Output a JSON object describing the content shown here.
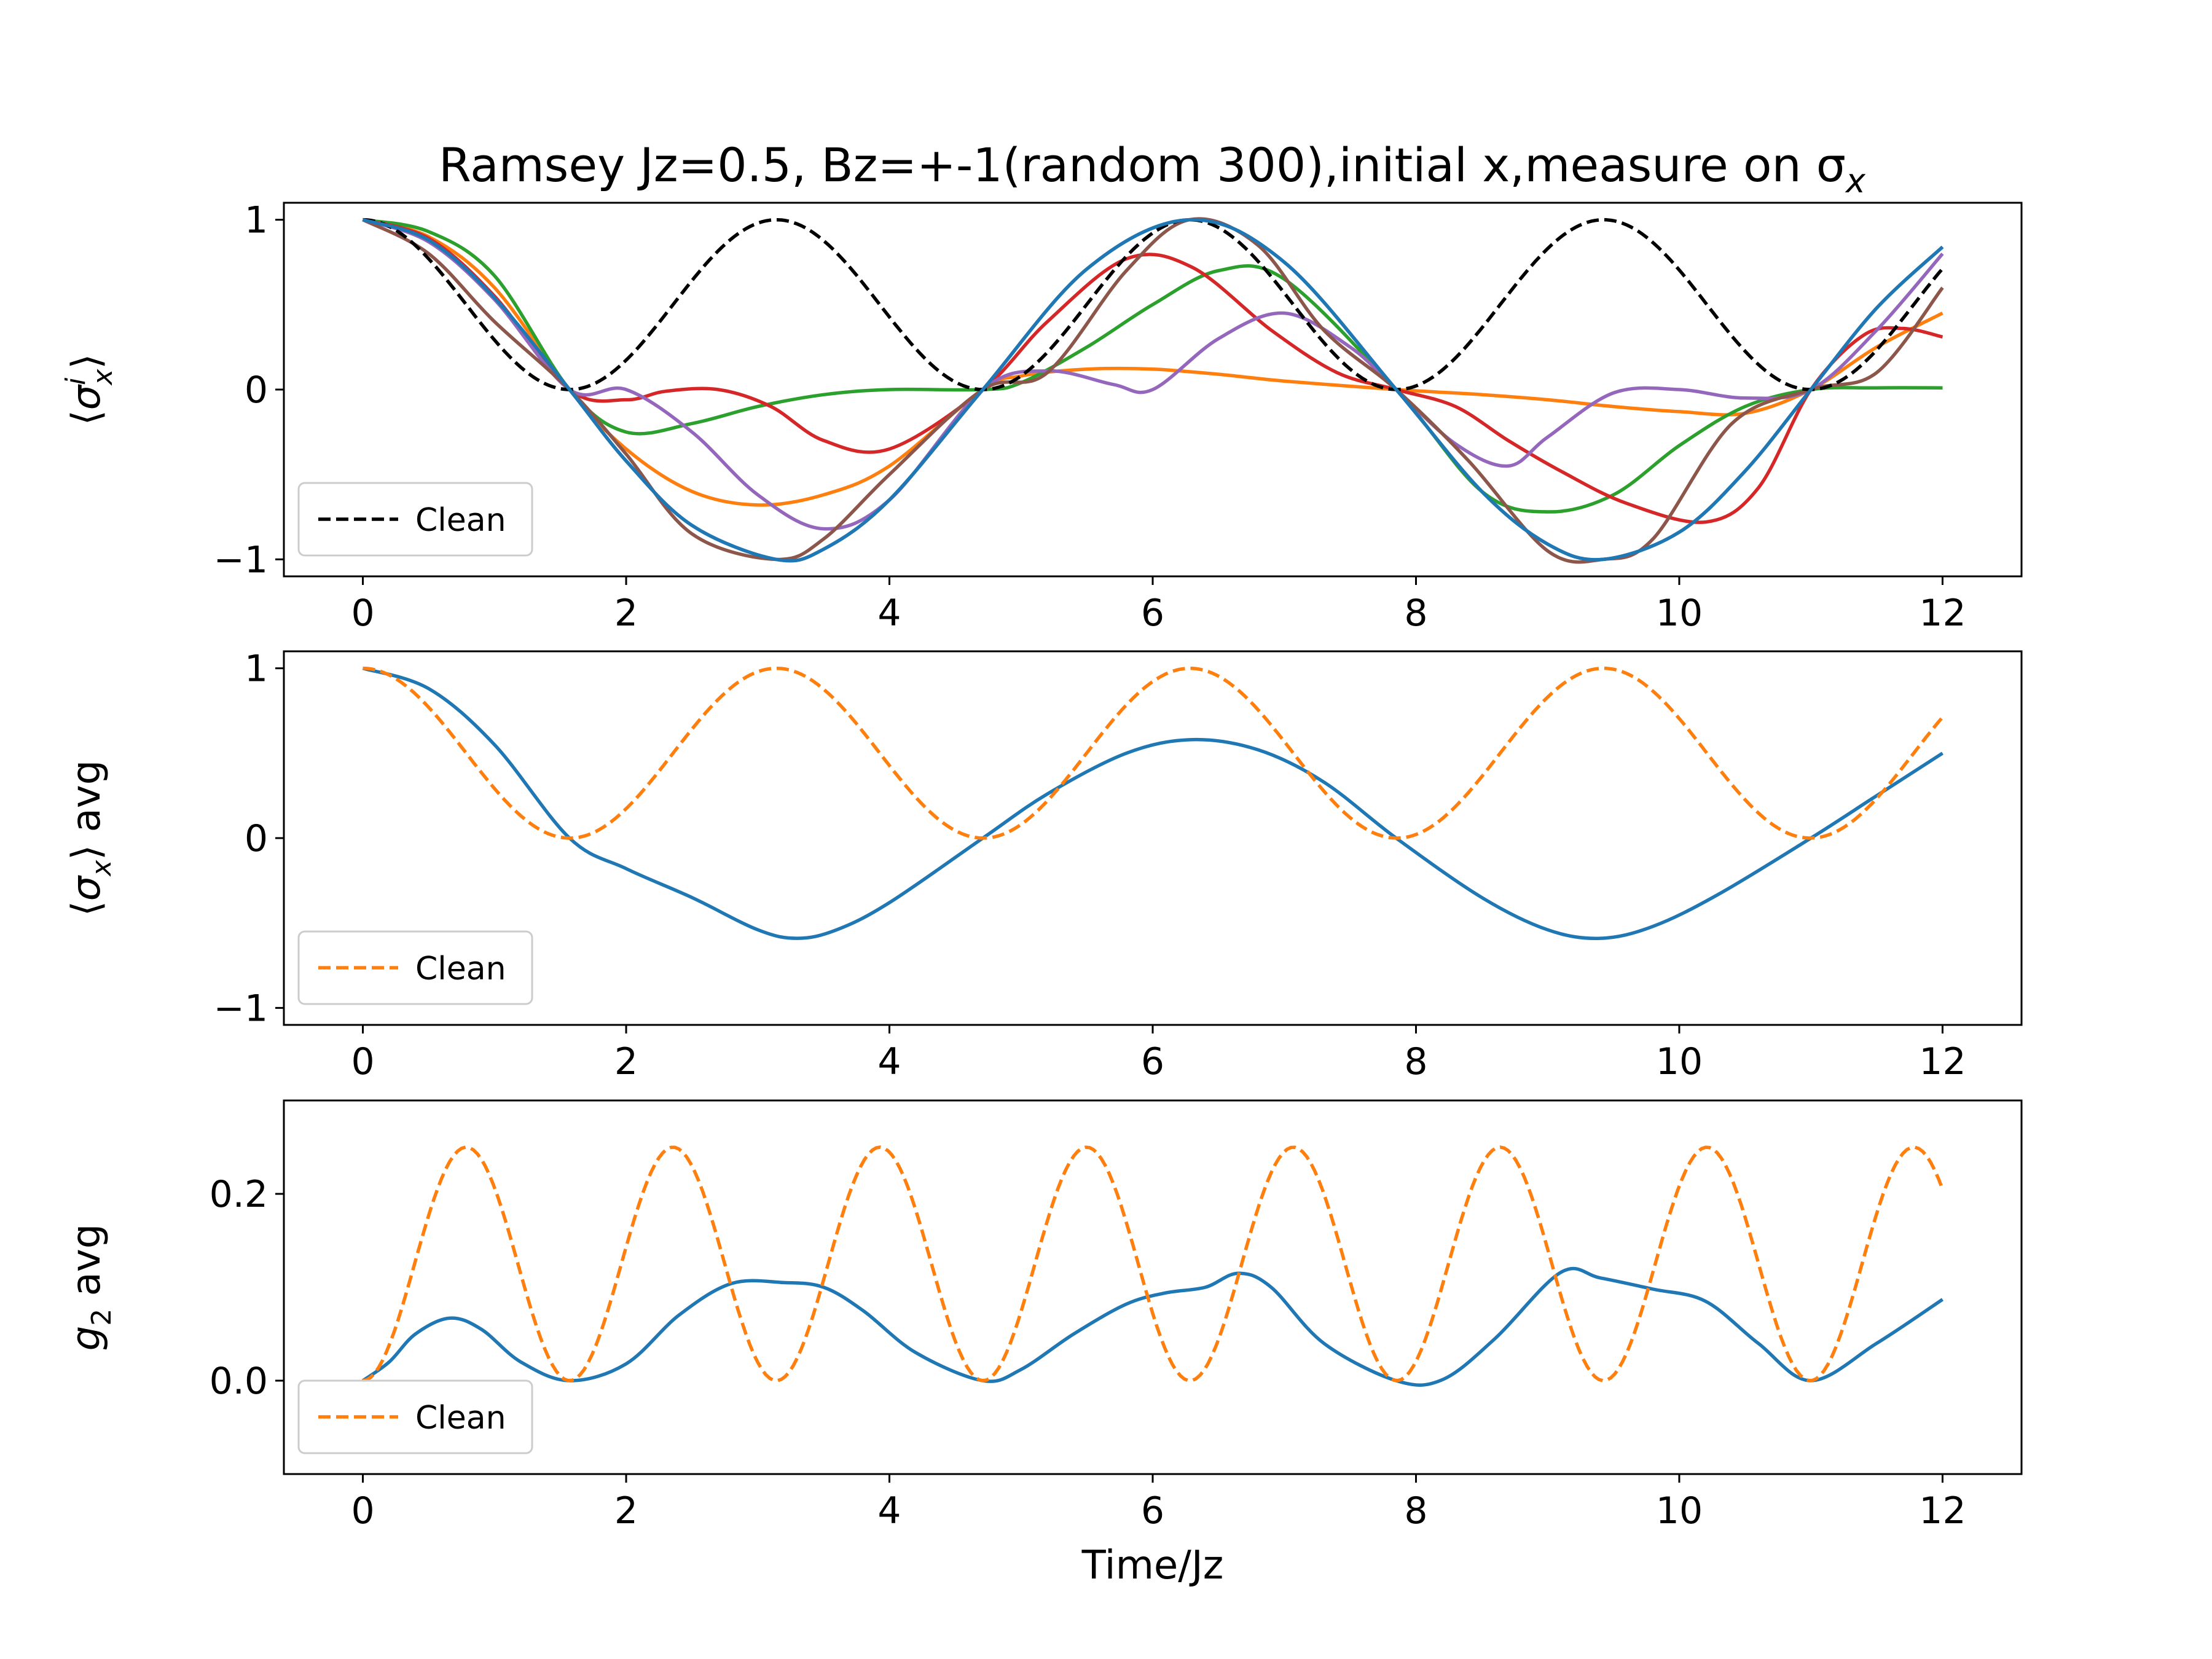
{
  "figure_title": "Ramsey Jz=0.5, Bz=+-1(random 300),initial x,measure on σ",
  "figure_title_subscript": "x",
  "colors": {
    "C0": "#1f77b4",
    "C1": "#ff7f0e",
    "C2": "#2ca02c",
    "C3": "#d62728",
    "C4": "#9467bd",
    "C5": "#8c564b",
    "clean_black": "#000000"
  },
  "chart_data": [
    {
      "type": "line",
      "title": "Ramsey Jz=0.5, Bz=+-1(random 300),initial x,measure on σ_x",
      "xlabel": "",
      "ylabel": "⟨σ_x^i⟩",
      "xlim": [
        -0.6,
        12.6
      ],
      "ylim": [
        -1.1,
        1.1
      ],
      "xticks": [
        "0",
        "2",
        "4",
        "6",
        "8",
        "10",
        "12"
      ],
      "yticks": [
        "−1",
        "0",
        "1"
      ],
      "legend": {
        "position": "lower-left",
        "entries": [
          "Clean"
        ]
      },
      "grid": false,
      "series": [
        {
          "color": "C0",
          "style": "solid",
          "x": [
            0,
            0.5,
            1,
            1.57,
            2,
            2.5,
            3.14,
            3.5,
            4,
            4.71,
            5.5,
            6.28,
            7,
            7.85,
            8.5,
            9,
            9.42,
            10,
            10.5,
            11,
            11.5,
            12
          ],
          "y": [
            1,
            0.88,
            0.54,
            0,
            -0.42,
            -0.8,
            -1,
            -0.94,
            -0.65,
            0,
            0.71,
            1,
            0.75,
            0,
            -0.6,
            -0.91,
            -1,
            -0.84,
            -0.48,
            0,
            0.48,
            0.84
          ]
        },
        {
          "color": "C1",
          "style": "solid",
          "x": [
            0,
            0.5,
            1,
            1.57,
            2,
            2.5,
            3,
            3.5,
            4,
            4.71,
            5,
            5.5,
            6,
            6.5,
            7,
            7.85,
            8.5,
            9,
            9.5,
            10,
            10.5,
            11,
            11.5,
            12
          ],
          "y": [
            1,
            0.9,
            0.6,
            0,
            -0.35,
            -0.6,
            -0.68,
            -0.62,
            -0.45,
            0,
            0.08,
            0.12,
            0.12,
            0.09,
            0.05,
            0,
            -0.03,
            -0.06,
            -0.1,
            -0.13,
            -0.14,
            0,
            0.25,
            0.45
          ]
        },
        {
          "color": "C2",
          "style": "solid",
          "x": [
            0,
            0.5,
            1,
            1.57,
            2,
            2.5,
            3,
            3.5,
            4,
            4.71,
            5,
            5.5,
            6,
            6.5,
            7,
            7.85,
            8.5,
            9,
            9.5,
            10,
            10.5,
            11,
            11.5,
            12
          ],
          "y": [
            1,
            0.93,
            0.67,
            0,
            -0.25,
            -0.2,
            -0.1,
            -0.03,
            0,
            0,
            0.04,
            0.25,
            0.5,
            0.7,
            0.65,
            0,
            -0.6,
            -0.72,
            -0.62,
            -0.33,
            -0.1,
            0,
            0.01,
            0.01
          ]
        },
        {
          "color": "C3",
          "style": "solid",
          "x": [
            0,
            0.5,
            1,
            1.57,
            2,
            2.3,
            2.7,
            3.1,
            3.5,
            4,
            4.71,
            5.2,
            5.8,
            6.3,
            6.9,
            7.4,
            7.85,
            8.3,
            8.7,
            9.1,
            9.6,
            10.2,
            10.6,
            11,
            11.4,
            11.7,
            12
          ],
          "y": [
            1,
            0.89,
            0.55,
            0,
            -0.06,
            -0.01,
            0,
            -0.1,
            -0.3,
            -0.35,
            0,
            0.4,
            0.77,
            0.72,
            0.35,
            0.1,
            0,
            -0.1,
            -0.3,
            -0.48,
            -0.67,
            -0.78,
            -0.58,
            0,
            0.32,
            0.36,
            0.31
          ]
        },
        {
          "color": "C4",
          "style": "solid",
          "x": [
            0,
            0.5,
            1,
            1.57,
            2,
            2.5,
            3,
            3.5,
            4,
            4.71,
            5.2,
            5.7,
            6,
            6.5,
            7,
            7.5,
            7.85,
            8.3,
            8.7,
            9,
            9.5,
            10,
            10.5,
            11,
            11.5,
            12
          ],
          "y": [
            1,
            0.87,
            0.53,
            0,
            0,
            -0.25,
            -0.62,
            -0.82,
            -0.65,
            0,
            0.11,
            0.03,
            0,
            0.3,
            0.45,
            0.25,
            0,
            -0.32,
            -0.45,
            -0.28,
            -0.02,
            0,
            -0.05,
            0,
            0.35,
            0.8
          ]
        },
        {
          "color": "C5",
          "style": "solid",
          "x": [
            0,
            0.5,
            1,
            1.57,
            2,
            2.5,
            3.14,
            3.5,
            4,
            4.71,
            5.2,
            5.8,
            6.28,
            6.8,
            7.3,
            7.85,
            8.4,
            9,
            9.42,
            9.8,
            10.4,
            11,
            11.5,
            12
          ],
          "y": [
            1,
            0.8,
            0.4,
            0,
            -0.38,
            -0.85,
            -1,
            -0.88,
            -0.5,
            0,
            0.1,
            0.7,
            1,
            0.85,
            0.35,
            0,
            -0.42,
            -0.95,
            -1,
            -0.88,
            -0.2,
            0,
            0.1,
            0.6
          ]
        },
        {
          "color": "clean_black",
          "style": "dashed",
          "name": "Clean",
          "formula": "cos2",
          "x_start": 0,
          "x_end": 12
        },
        {
          "color": "C0",
          "style": "solid",
          "x": [
            0,
            0.5,
            1,
            1.57,
            2,
            2.5,
            3.14,
            3.5,
            4,
            4.71,
            5.5,
            6.28,
            7,
            7.85,
            8.5,
            9,
            9.42,
            10,
            10.5,
            11,
            11.5,
            12
          ],
          "y": [
            1,
            0.88,
            0.54,
            0,
            -0.42,
            -0.8,
            -1,
            -0.94,
            -0.65,
            0,
            0.71,
            1,
            0.75,
            0,
            -0.6,
            -0.91,
            -1,
            -0.84,
            -0.48,
            0,
            0.48,
            0.84
          ]
        }
      ]
    },
    {
      "type": "line",
      "xlabel": "",
      "ylabel": "⟨σ_x⟩ avg",
      "xlim": [
        -0.6,
        12.6
      ],
      "ylim": [
        -1.1,
        1.1
      ],
      "xticks": [
        "0",
        "2",
        "4",
        "6",
        "8",
        "10",
        "12"
      ],
      "yticks": [
        "−1",
        "0",
        "1"
      ],
      "legend": {
        "position": "lower-left",
        "entries": [
          "Clean"
        ]
      },
      "grid": false,
      "series": [
        {
          "color": "C0",
          "style": "solid",
          "x": [
            0,
            0.5,
            1,
            1.57,
            2,
            2.5,
            3,
            3.3,
            3.6,
            4,
            4.71,
            5.2,
            5.8,
            6.3,
            6.8,
            7.3,
            7.85,
            8.5,
            9,
            9.4,
            9.8,
            10.3,
            11,
            11.5,
            12
          ],
          "y": [
            1,
            0.88,
            0.55,
            0,
            -0.18,
            -0.35,
            -0.54,
            -0.59,
            -0.54,
            -0.38,
            0,
            0.26,
            0.5,
            0.58,
            0.52,
            0.33,
            0,
            -0.35,
            -0.54,
            -0.59,
            -0.52,
            -0.33,
            0,
            0.25,
            0.5
          ]
        },
        {
          "color": "C1",
          "style": "dashed",
          "name": "Clean",
          "formula": "cos2",
          "x_start": 0,
          "x_end": 12
        }
      ]
    },
    {
      "type": "line",
      "xlabel": "Time/Jz",
      "ylabel": "g_2 avg",
      "xlim": [
        -0.6,
        12.6
      ],
      "ylim": [
        -0.1,
        0.3
      ],
      "xticks": [
        "0",
        "2",
        "4",
        "6",
        "8",
        "10",
        "12"
      ],
      "yticks": [
        "0.0",
        "0.2"
      ],
      "legend": {
        "position": "lower-left",
        "entries": [
          "Clean"
        ]
      },
      "grid": false,
      "series": [
        {
          "color": "C0",
          "style": "solid",
          "x": [
            0,
            0.2,
            0.4,
            0.66,
            0.9,
            1.2,
            1.57,
            2,
            2.4,
            2.8,
            3.2,
            3.5,
            3.8,
            4.2,
            4.71,
            5,
            5.4,
            5.8,
            6.1,
            6.4,
            6.65,
            6.9,
            7.3,
            7.85,
            8.2,
            8.6,
            9.1,
            9.4,
            9.8,
            10.2,
            10.6,
            11,
            11.5,
            12
          ],
          "y": [
            0,
            0.02,
            0.05,
            0.067,
            0.055,
            0.02,
            0,
            0.018,
            0.07,
            0.104,
            0.105,
            0.1,
            0.075,
            0.03,
            0,
            0.012,
            0.05,
            0.082,
            0.094,
            0.1,
            0.115,
            0.1,
            0.04,
            0,
            0.001,
            0.045,
            0.116,
            0.11,
            0.098,
            0.085,
            0.04,
            0,
            0.04,
            0.087
          ]
        },
        {
          "color": "C1",
          "style": "dashed",
          "name": "Clean",
          "formula": "sin2cos2",
          "x_start": 0,
          "x_end": 12
        }
      ]
    }
  ]
}
